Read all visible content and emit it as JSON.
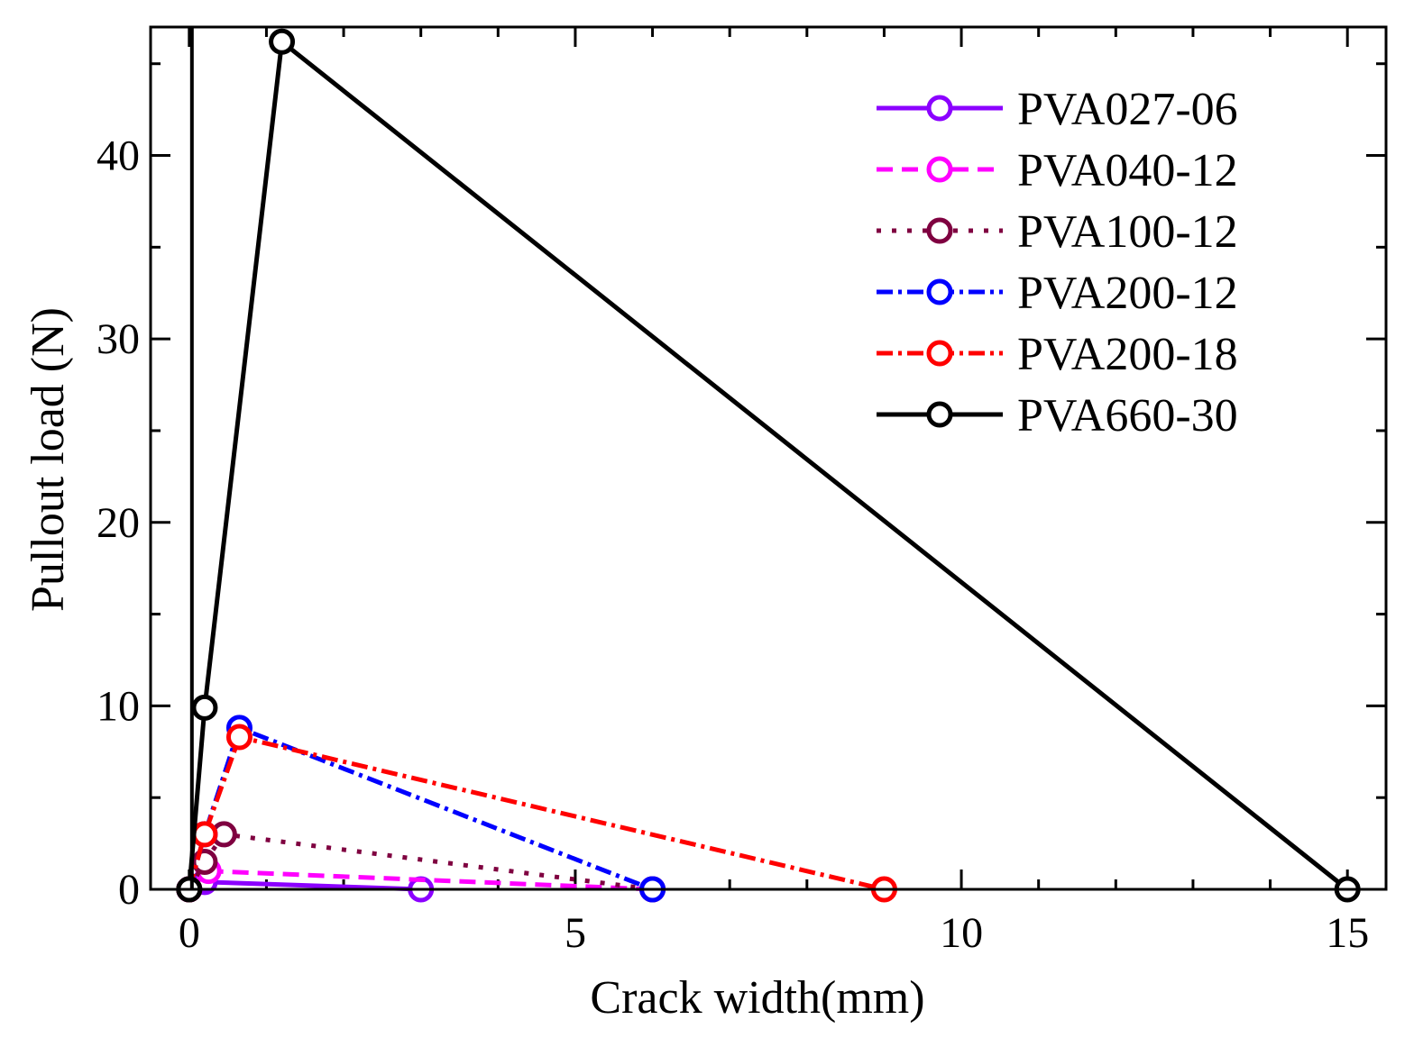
{
  "chart_data": {
    "type": "line",
    "title": "",
    "xlabel": "Crack width(mm)",
    "ylabel": "Pullout load (N)",
    "xlim": [
      -0.5,
      15.5
    ],
    "ylim": [
      0,
      47
    ],
    "xticks": [
      0,
      5,
      10,
      15
    ],
    "yticks": [
      0,
      10,
      20,
      30,
      40
    ],
    "xtick_labels": [
      "0",
      "5",
      "10",
      "15"
    ],
    "ytick_labels": [
      "0",
      "10",
      "20",
      "30",
      "40"
    ],
    "grid": false,
    "legend_position": "top-right",
    "series": [
      {
        "name": "PVA027-06",
        "color": "#8B00FF",
        "dash": "solid",
        "x": [
          0,
          0.2,
          3.0
        ],
        "y": [
          0,
          0.4,
          0
        ]
      },
      {
        "name": "PVA040-12",
        "color": "#FF00FF",
        "dash": "dashed",
        "x": [
          0,
          0.25,
          6.0
        ],
        "y": [
          0,
          1.0,
          0
        ]
      },
      {
        "name": "PVA100-12",
        "color": "#7F0040",
        "dash": "dotted",
        "x": [
          0,
          0.2,
          0.45,
          6.0
        ],
        "y": [
          0,
          1.5,
          3.0,
          0
        ]
      },
      {
        "name": "PVA200-12",
        "color": "#0000FF",
        "dash": "dashdot",
        "x": [
          0,
          0.2,
          0.65,
          6.0
        ],
        "y": [
          0,
          3.0,
          8.8,
          0
        ]
      },
      {
        "name": "PVA200-18",
        "color": "#FF0000",
        "dash": "dashdot",
        "x": [
          0,
          0.2,
          0.65,
          9.0
        ],
        "y": [
          0,
          3.0,
          8.3,
          0
        ]
      },
      {
        "name": "PVA660-30",
        "color": "#000000",
        "dash": "solid",
        "x": [
          0,
          0.2,
          1.2,
          15.0
        ],
        "y": [
          0,
          9.9,
          46.2,
          0
        ]
      }
    ]
  }
}
